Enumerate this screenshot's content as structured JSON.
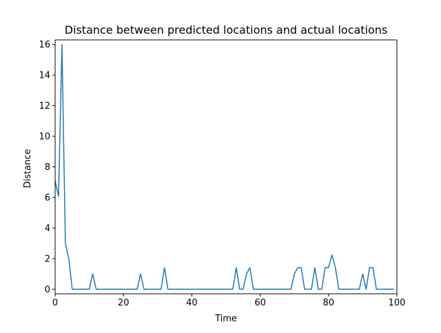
{
  "chart_data": {
    "type": "line",
    "title": "Distance between predicted locations and actual locations",
    "xlabel": "Time",
    "ylabel": "Distance",
    "xlim": [
      0,
      100
    ],
    "ylim": [
      -0.3,
      16.3
    ],
    "xticks": [
      0,
      20,
      40,
      60,
      80,
      100
    ],
    "yticks": [
      0,
      2,
      4,
      6,
      8,
      10,
      12,
      14,
      16
    ],
    "grid": false,
    "series": [
      {
        "color": "#1f77b4",
        "x": [
          0,
          1,
          2,
          3,
          4,
          5,
          6,
          7,
          8,
          9,
          10,
          11,
          12,
          13,
          14,
          15,
          16,
          17,
          18,
          19,
          20,
          21,
          22,
          23,
          24,
          25,
          26,
          27,
          28,
          29,
          30,
          31,
          32,
          33,
          34,
          35,
          36,
          37,
          38,
          39,
          40,
          41,
          42,
          43,
          44,
          45,
          46,
          47,
          48,
          49,
          50,
          51,
          52,
          53,
          54,
          55,
          56,
          57,
          58,
          59,
          60,
          61,
          62,
          63,
          64,
          65,
          66,
          67,
          68,
          69,
          70,
          71,
          72,
          73,
          74,
          75,
          76,
          77,
          78,
          79,
          80,
          81,
          82,
          83,
          84,
          85,
          86,
          87,
          88,
          89,
          90,
          91,
          92,
          93,
          94,
          95,
          96,
          97,
          98,
          99
        ],
        "y": [
          7.07,
          6.08,
          16.0,
          3.0,
          2.0,
          0,
          0,
          0,
          0,
          0,
          0,
          1.0,
          0,
          0,
          0,
          0,
          0,
          0,
          0,
          0,
          0,
          0,
          0,
          0,
          0,
          1.0,
          0,
          0,
          0,
          0,
          0,
          0,
          1.41,
          0,
          0,
          0,
          0,
          0,
          0,
          0,
          0,
          0,
          0,
          0,
          0,
          0,
          0,
          0,
          0,
          0,
          0,
          0,
          0,
          1.41,
          0,
          0,
          1.0,
          1.41,
          0,
          0,
          0,
          0,
          0,
          0,
          0,
          0,
          0,
          0,
          0,
          0,
          1.0,
          1.41,
          1.41,
          0,
          0,
          0,
          1.41,
          0,
          0,
          1.41,
          1.41,
          2.24,
          1.41,
          0,
          0,
          0,
          0,
          0,
          0,
          0,
          1.0,
          0,
          1.41,
          1.41,
          0,
          0,
          0,
          0,
          0,
          0
        ]
      }
    ]
  }
}
